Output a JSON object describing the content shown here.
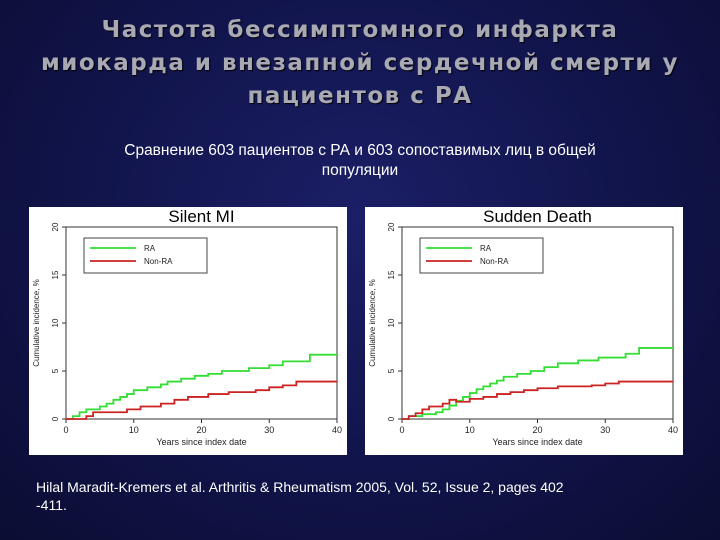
{
  "slide": {
    "title_line1": "Частота бессимптомного инфаркта",
    "title_line2": "миокарда и внезапной сердечной смерти у",
    "title_line3": "пациентов с РА",
    "subtitle_line1": "Сравнение 603 пациентов с РА и 603 сопоставимых лиц в общей",
    "subtitle_line2": "популяции",
    "citation_line1": "Hilal Maradit-Kremers et al. Arthritis & Rheumatism 2005, Vol. 52, Issue 2, pages 402",
    "citation_line2": "-411."
  },
  "chart_data": [
    {
      "type": "line",
      "title": "Silent MI",
      "xlabel": "Years since index date",
      "ylabel": "Cumulative incidence, %",
      "xlim": [
        0,
        40
      ],
      "ylim": [
        0,
        20
      ],
      "xticks": [
        0,
        10,
        20,
        30,
        40
      ],
      "yticks": [
        0,
        5,
        10,
        15,
        20
      ],
      "grid": false,
      "legend_position": "top-left",
      "step": true,
      "series": [
        {
          "name": "RA",
          "color": "#33dd33",
          "x": [
            0,
            1,
            2,
            3,
            5,
            6,
            7,
            8,
            9,
            10,
            12,
            14,
            15,
            17,
            19,
            21,
            23,
            27,
            30,
            32,
            36,
            40
          ],
          "y": [
            0,
            0.3,
            0.7,
            1.0,
            1.3,
            1.6,
            2.0,
            2.3,
            2.6,
            3.0,
            3.3,
            3.6,
            3.9,
            4.2,
            4.5,
            4.7,
            5.0,
            5.3,
            5.6,
            6.0,
            6.7,
            6.7
          ]
        },
        {
          "name": "Non-RA",
          "color": "#cc2222",
          "x": [
            0,
            3,
            4,
            7,
            9,
            11,
            14,
            16,
            18,
            21,
            24,
            28,
            30,
            32,
            34,
            40
          ],
          "y": [
            0,
            0.3,
            0.7,
            0.7,
            1.0,
            1.3,
            1.6,
            2.0,
            2.3,
            2.6,
            2.8,
            3.0,
            3.3,
            3.5,
            3.9,
            3.9
          ]
        }
      ]
    },
    {
      "type": "line",
      "title": "Sudden Death",
      "xlabel": "Years since index date",
      "ylabel": "Cumulative incidence, %",
      "xlim": [
        0,
        40
      ],
      "ylim": [
        0,
        20
      ],
      "xticks": [
        0,
        10,
        20,
        30,
        40
      ],
      "yticks": [
        0,
        5,
        10,
        15,
        20
      ],
      "grid": false,
      "legend_position": "top-left",
      "step": true,
      "series": [
        {
          "name": "RA",
          "color": "#33dd33",
          "x": [
            0,
            1,
            3,
            5,
            6,
            7,
            8,
            9,
            10,
            11,
            12,
            13,
            14,
            15,
            17,
            19,
            21,
            23,
            26,
            29,
            33,
            35,
            40
          ],
          "y": [
            0,
            0.3,
            0.5,
            0.7,
            1.0,
            1.4,
            1.9,
            2.3,
            2.7,
            3.1,
            3.4,
            3.7,
            4.0,
            4.4,
            4.7,
            5.0,
            5.4,
            5.8,
            6.1,
            6.4,
            6.8,
            7.4,
            7.4
          ]
        },
        {
          "name": "Non-RA",
          "color": "#cc2222",
          "x": [
            0,
            1,
            2,
            3,
            4,
            6,
            7,
            8,
            10,
            12,
            14,
            16,
            18,
            20,
            23,
            28,
            30,
            32,
            40
          ],
          "y": [
            0,
            0.3,
            0.6,
            1.0,
            1.3,
            1.6,
            2.0,
            1.8,
            2.1,
            2.3,
            2.6,
            2.8,
            3.0,
            3.2,
            3.4,
            3.5,
            3.7,
            3.9,
            3.9
          ]
        }
      ]
    }
  ]
}
